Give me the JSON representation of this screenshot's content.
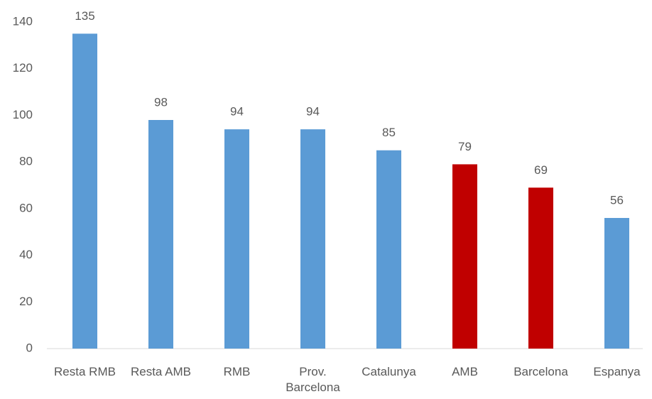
{
  "chart_data": {
    "type": "bar",
    "categories": [
      "Resta RMB",
      "Resta AMB",
      "RMB",
      "Prov. Barcelona",
      "Catalunya",
      "AMB",
      "Barcelona",
      "Espanya"
    ],
    "values": [
      135,
      98,
      94,
      94,
      85,
      79,
      69,
      56
    ],
    "colors": [
      "#5b9bd5",
      "#5b9bd5",
      "#5b9bd5",
      "#5b9bd5",
      "#5b9bd5",
      "#c00000",
      "#c00000",
      "#5b9bd5"
    ],
    "ylim": [
      0,
      140
    ],
    "yticks": [
      0,
      20,
      40,
      60,
      80,
      100,
      120,
      140
    ],
    "grid": false
  }
}
